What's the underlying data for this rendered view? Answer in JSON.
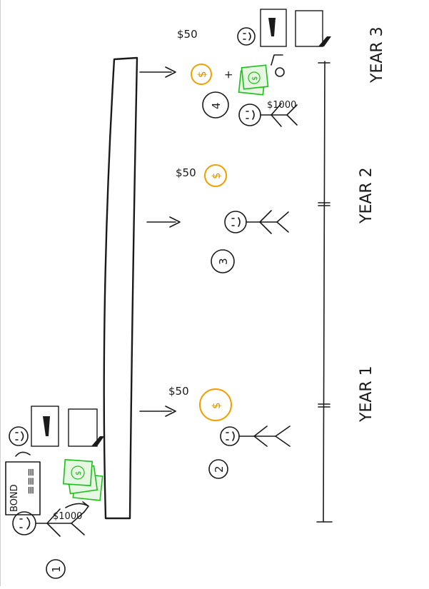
{
  "steps": [
    "1",
    "2",
    "3",
    "4"
  ],
  "years": [
    "YEAR 1",
    "YEAR 2",
    "YEAR 3"
  ],
  "amounts": {
    "principal": "$1000",
    "coupon_year1": "$50",
    "coupon_year2": "$50",
    "coupon_year3": "$50",
    "plus": "+",
    "cash_return": "$1000"
  },
  "bond": {
    "title": "BOND",
    "lines": "≡≡≡"
  },
  "money_symbol": "$",
  "colors": {
    "coin": "#f0a000",
    "cash": "#19c119",
    "ink": "#1a1a1a"
  }
}
